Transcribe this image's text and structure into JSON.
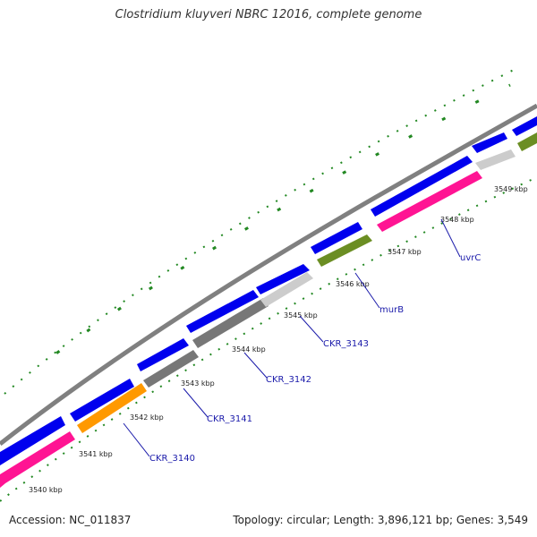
{
  "title": "Clostridium kluyveri NBRC 12016, complete genome",
  "footer": {
    "accession_label": "Accession: NC_011837",
    "summary": "Topology: circular; Length: 3,896,121 bp; Genes: 3,549"
  },
  "colors": {
    "backbone": "#808080",
    "cds_blue": "#0000ee",
    "magenta": "#ff1493",
    "orange": "#ff9900",
    "dark_gray": "#555555",
    "medium_gray": "#777777",
    "light_gray": "#cccccc",
    "olive": "#6b8e23",
    "tick_green": "#228822",
    "label_blue": "#1a1aaa"
  },
  "ticks": [
    {
      "label": "3540 kbp"
    },
    {
      "label": "3541 kbp"
    },
    {
      "label": "3542 kbp"
    },
    {
      "label": "3543 kbp"
    },
    {
      "label": "3544 kbp"
    },
    {
      "label": "3545 kbp"
    },
    {
      "label": "3546 kbp"
    },
    {
      "label": "3547 kbp"
    },
    {
      "label": "3548 kbp"
    },
    {
      "label": "3549 kbp"
    }
  ],
  "genes": [
    {
      "label": "CKR_3140"
    },
    {
      "label": "CKR_3141"
    },
    {
      "label": "CKR_3142"
    },
    {
      "label": "CKR_3143"
    },
    {
      "label": "murB"
    },
    {
      "label": "uvrC"
    }
  ]
}
